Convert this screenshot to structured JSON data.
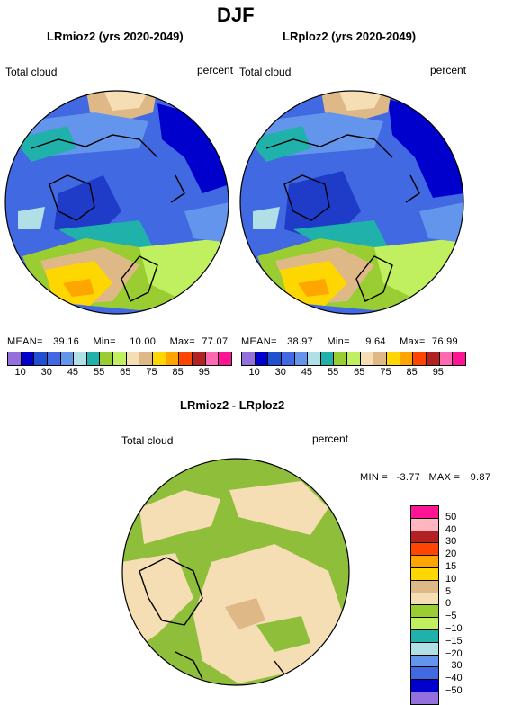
{
  "figure": {
    "title": "DJF",
    "panel_left": {
      "title": "LRmioz2 (yrs 2020-2049)",
      "variable": "Total cloud",
      "units": "percent",
      "stats": {
        "mean_label": "MEAN=",
        "mean": "39.16",
        "min_label": "Min=",
        "min": "10.00",
        "max_label": "Max=",
        "max": "77.07"
      }
    },
    "panel_right": {
      "title": "LRploz2 (yrs 2020-2049)",
      "variable": "Total cloud",
      "units": "percent",
      "stats": {
        "mean_label": "MEAN=",
        "mean": "38.97",
        "min_label": "Min=",
        "min": "9.64",
        "max_label": "Max=",
        "max": "76.99"
      }
    },
    "panel_diff": {
      "title": "LRmioz2 - LRploz2",
      "variable": "Total cloud",
      "units": "percent",
      "stats": {
        "min_label": "MIN =",
        "min": "-3.77",
        "max_label": "MAX =",
        "max": "9.87"
      }
    },
    "colorbar_top": {
      "labels": [
        "10",
        "30",
        "45",
        "55",
        "65",
        "75",
        "85",
        "95"
      ],
      "colors": [
        "#9370db",
        "#0000cd",
        "#1e50d0",
        "#4169e1",
        "#6495ed",
        "#b0e0e6",
        "#20b2aa",
        "#9acd32",
        "#c0f060",
        "#f5deb3",
        "#deb887",
        "#ffd700",
        "#ffa500",
        "#ff4500",
        "#b22222",
        "#ff69b4",
        "#ff1493"
      ]
    },
    "colorbar_diff": {
      "labels": [
        "50",
        "40",
        "30",
        "20",
        "15",
        "10",
        "5",
        "0",
        "−5",
        "−10",
        "−15",
        "−20",
        "−30",
        "−40",
        "−50"
      ],
      "colors": [
        "#ff1493",
        "#ffb6c1",
        "#b22222",
        "#ff4500",
        "#ffa500",
        "#ffd700",
        "#deb887",
        "#f5deb3",
        "#9acd32",
        "#c0f060",
        "#20b2aa",
        "#b0e0e6",
        "#6495ed",
        "#4169e1",
        "#0000cd",
        "#9370db"
      ]
    },
    "map_colors": {
      "ocean_deep": "#4169e1",
      "ocean_dark": "#1e3cc8",
      "navy": "#0000cd",
      "sky": "#6495ed",
      "teal": "#20b2aa",
      "lightcyan": "#b0e0e6",
      "green": "#9acd32",
      "lime": "#c0f060",
      "tan": "#deb887",
      "wheat": "#f5deb3",
      "gold": "#ffd700",
      "orange": "#ffa500",
      "diff_green": "#8fbf3a",
      "diff_wheat": "#f5deb3"
    }
  }
}
